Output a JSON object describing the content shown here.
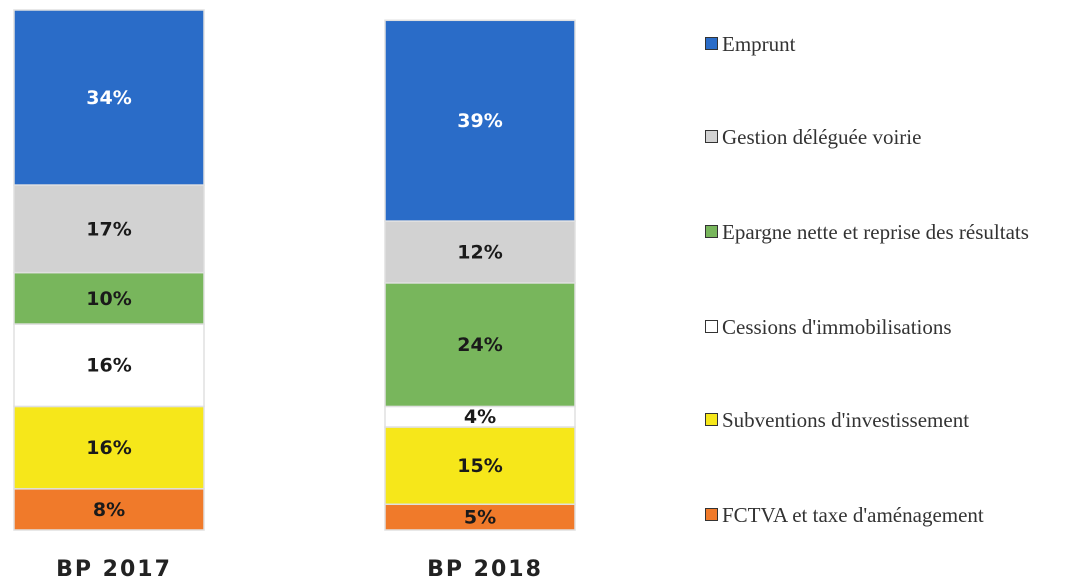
{
  "chart_data": {
    "type": "stacked_bar",
    "categories": [
      "BP 2017",
      "BP 2018"
    ],
    "series": [
      {
        "name": "Emprunt",
        "color": "#2a6cc8",
        "label_color": "#ffffff",
        "values": [
          34,
          39
        ],
        "value_labels": [
          "34%",
          "39%"
        ]
      },
      {
        "name": "Gestion déléguée voirie",
        "color": "#d2d2d2",
        "label_color": "#1a1a1a",
        "values": [
          17,
          12
        ],
        "value_labels": [
          "17%",
          "12%"
        ]
      },
      {
        "name": "Epargne nette et reprise des résultats",
        "color": "#78b65c",
        "label_color": "#1a1a1a",
        "values": [
          10,
          24
        ],
        "value_labels": [
          "10%",
          "24%"
        ]
      },
      {
        "name": "Cessions d'immobilisations",
        "color": "#ffffff",
        "label_color": "#1a1a1a",
        "values": [
          16,
          4
        ],
        "value_labels": [
          "16%",
          "4%"
        ]
      },
      {
        "name": "Subventions d'investissement",
        "color": "#f6e71a",
        "label_color": "#1a1a1a",
        "values": [
          16,
          15
        ],
        "value_labels": [
          "16%",
          "15%"
        ]
      },
      {
        "name": "FCTVA et taxe d'aménagement",
        "color": "#f07a2a",
        "label_color": "#1a1a1a",
        "values": [
          8,
          5
        ],
        "value_labels": [
          "8%",
          "5%"
        ]
      }
    ],
    "legend": "right"
  }
}
